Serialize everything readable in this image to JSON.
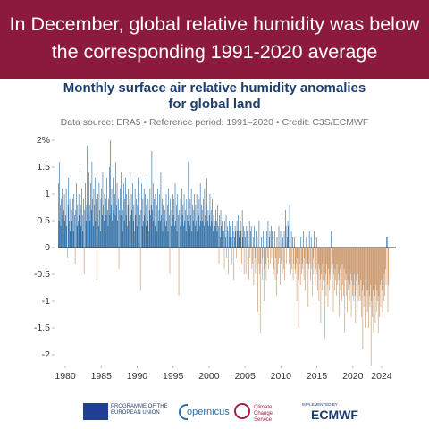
{
  "headline": "In December, global relative humidity was below the corresponding 1991-2020 average",
  "chart_data": {
    "type": "bar",
    "title": "Monthly surface air relative humidity anomalies for global land",
    "subtitle": "Data source: ERA5 • Reference period: 1991–2020 • Credit: C3S/ECMWF",
    "positive_color": "#2e6da4",
    "negative_color": "#c9966a",
    "xlim": [
      1979,
      2025.5
    ],
    "xticks": [
      1980,
      1985,
      1990,
      1995,
      2000,
      2005,
      2010,
      2015,
      2020,
      2024
    ],
    "ylim": [
      -2.2,
      2.1
    ],
    "yticks": [
      {
        "value": 2,
        "label": "2%"
      },
      1.5,
      1,
      0.5,
      0,
      -0.5,
      -1,
      -1.5,
      -2
    ],
    "x": [
      1979.04,
      1979.13,
      1979.21,
      1979.29,
      1979.38,
      1979.46,
      1979.54,
      1979.63,
      1979.71,
      1979.79,
      1979.88,
      1979.96,
      1980.04,
      1980.13,
      1980.21,
      1980.29,
      1980.38,
      1980.46,
      1980.54,
      1980.63,
      1980.71,
      1980.79,
      1980.88,
      1980.96,
      1981.04,
      1981.13,
      1981.21,
      1981.29,
      1981.38,
      1981.46,
      1981.54,
      1981.63,
      1981.71,
      1981.79,
      1981.88,
      1981.96,
      1982.04,
      1982.13,
      1982.21,
      1982.29,
      1982.38,
      1982.46,
      1982.54,
      1982.63,
      1982.71,
      1982.79,
      1982.88,
      1982.96,
      1983.04,
      1983.13,
      1983.21,
      1983.29,
      1983.38,
      1983.46,
      1983.54,
      1983.63,
      1983.71,
      1983.79,
      1983.88,
      1983.96,
      1984.04,
      1984.13,
      1984.21,
      1984.29,
      1984.38,
      1984.46,
      1984.54,
      1984.63,
      1984.71,
      1984.79,
      1984.88,
      1984.96,
      1985.04,
      1985.13,
      1985.21,
      1985.29,
      1985.38,
      1985.46,
      1985.54,
      1985.63,
      1985.71,
      1985.79,
      1985.88,
      1985.96,
      1986.04,
      1986.13,
      1986.21,
      1986.29,
      1986.38,
      1986.46,
      1986.54,
      1986.63,
      1986.71,
      1986.79,
      1986.88,
      1986.96,
      1987.04,
      1987.13,
      1987.21,
      1987.29,
      1987.38,
      1987.46,
      1987.54,
      1987.63,
      1987.71,
      1987.79,
      1987.88,
      1987.96,
      1988.04,
      1988.13,
      1988.21,
      1988.29,
      1988.38,
      1988.46,
      1988.54,
      1988.63,
      1988.71,
      1988.79,
      1988.88,
      1988.96,
      1989.04,
      1989.13,
      1989.21,
      1989.29,
      1989.38,
      1989.46,
      1989.54,
      1989.63,
      1989.71,
      1989.79,
      1989.88,
      1989.96,
      1990.04,
      1990.13,
      1990.21,
      1990.29,
      1990.38,
      1990.46,
      1990.54,
      1990.63,
      1990.71,
      1990.79,
      1990.88,
      1990.96,
      1991.04,
      1991.13,
      1991.21,
      1991.29,
      1991.38,
      1991.46,
      1991.54,
      1991.63,
      1991.71,
      1991.79,
      1991.88,
      1991.96,
      1992.04,
      1992.13,
      1992.21,
      1992.29,
      1992.38,
      1992.46,
      1992.54,
      1992.63,
      1992.71,
      1992.79,
      1992.88,
      1992.96,
      1993.04,
      1993.13,
      1993.21,
      1993.29,
      1993.38,
      1993.46,
      1993.54,
      1993.63,
      1993.71,
      1993.79,
      1993.88,
      1993.96,
      1994.04,
      1994.13,
      1994.21,
      1994.29,
      1994.38,
      1994.46,
      1994.54,
      1994.63,
      1994.71,
      1994.79,
      1994.88,
      1994.96,
      1995.04,
      1995.13,
      1995.21,
      1995.29,
      1995.38,
      1995.46,
      1995.54,
      1995.63,
      1995.71,
      1995.79,
      1995.88,
      1995.96,
      1996.04,
      1996.13,
      1996.21,
      1996.29,
      1996.38,
      1996.46,
      1996.54,
      1996.63,
      1996.71,
      1996.79,
      1996.88,
      1996.96,
      1997.04,
      1997.13,
      1997.21,
      1997.29,
      1997.38,
      1997.46,
      1997.54,
      1997.63,
      1997.71,
      1997.79,
      1997.88,
      1997.96,
      1998.04,
      1998.13,
      1998.21,
      1998.29,
      1998.38,
      1998.46,
      1998.54,
      1998.63,
      1998.71,
      1998.79,
      1998.88,
      1998.96,
      1999.04,
      1999.13,
      1999.21,
      1999.29,
      1999.38,
      1999.46,
      1999.54,
      1999.63,
      1999.71,
      1999.79,
      1999.88,
      1999.96,
      2000.04,
      2000.13,
      2000.21,
      2000.29,
      2000.38,
      2000.46,
      2000.54,
      2000.63,
      2000.71,
      2000.79,
      2000.88,
      2000.96,
      2001.04,
      2001.13,
      2001.21,
      2001.29,
      2001.38,
      2001.46,
      2001.54,
      2001.63,
      2001.71,
      2001.79,
      2001.88,
      2001.96,
      2002.04,
      2002.13,
      2002.21,
      2002.29,
      2002.38,
      2002.46,
      2002.54,
      2002.63,
      2002.71,
      2002.79,
      2002.88,
      2002.96,
      2003.04,
      2003.13,
      2003.21,
      2003.29,
      2003.38,
      2003.46,
      2003.54,
      2003.63,
      2003.71,
      2003.79,
      2003.88,
      2003.96,
      2004.04,
      2004.13,
      2004.21,
      2004.29,
      2004.38,
      2004.46,
      2004.54,
      2004.63,
      2004.71,
      2004.79,
      2004.88,
      2004.96,
      2005.04,
      2005.13,
      2005.21,
      2005.29,
      2005.38,
      2005.46,
      2005.54,
      2005.63,
      2005.71,
      2005.79,
      2005.88,
      2005.96,
      2006.04,
      2006.13,
      2006.21,
      2006.29,
      2006.38,
      2006.46,
      2006.54,
      2006.63,
      2006.71,
      2006.79,
      2006.88,
      2006.96,
      2007.04,
      2007.13,
      2007.21,
      2007.29,
      2007.38,
      2007.46,
      2007.54,
      2007.63,
      2007.71,
      2007.79,
      2007.88,
      2007.96,
      2008.04,
      2008.13,
      2008.21,
      2008.29,
      2008.38,
      2008.46,
      2008.54,
      2008.63,
      2008.71,
      2008.79,
      2008.88,
      2008.96,
      2009.04,
      2009.13,
      2009.21,
      2009.29,
      2009.38,
      2009.46,
      2009.54,
      2009.63,
      2009.71,
      2009.79,
      2009.88,
      2009.96,
      2010.04,
      2010.13,
      2010.21,
      2010.29,
      2010.38,
      2010.46,
      2010.54,
      2010.63,
      2010.71,
      2010.79,
      2010.88,
      2010.96,
      2011.04,
      2011.13,
      2011.21,
      2011.29,
      2011.38,
      2011.46,
      2011.54,
      2011.63,
      2011.71,
      2011.79,
      2011.88,
      2011.96,
      2012.04,
      2012.13,
      2012.21,
      2012.29,
      2012.38,
      2012.46,
      2012.54,
      2012.63,
      2012.71,
      2012.79,
      2012.88,
      2012.96,
      2013.04,
      2013.13,
      2013.21,
      2013.29,
      2013.38,
      2013.46,
      2013.54,
      2013.63,
      2013.71,
      2013.79,
      2013.88,
      2013.96,
      2014.04,
      2014.13,
      2014.21,
      2014.29,
      2014.38,
      2014.46,
      2014.54,
      2014.63,
      2014.71,
      2014.79,
      2014.88,
      2014.96,
      2015.04,
      2015.13,
      2015.21,
      2015.29,
      2015.38,
      2015.46,
      2015.54,
      2015.63,
      2015.71,
      2015.79,
      2015.88,
      2015.96,
      2016.04,
      2016.13,
      2016.21,
      2016.29,
      2016.38,
      2016.46,
      2016.54,
      2016.63,
      2016.71,
      2016.79,
      2016.88,
      2016.96,
      2017.04,
      2017.13,
      2017.21,
      2017.29,
      2017.38,
      2017.46,
      2017.54,
      2017.63,
      2017.71,
      2017.79,
      2017.88,
      2017.96,
      2018.04,
      2018.13,
      2018.21,
      2018.29,
      2018.38,
      2018.46,
      2018.54,
      2018.63,
      2018.71,
      2018.79,
      2018.88,
      2018.96,
      2019.04,
      2019.13,
      2019.21,
      2019.29,
      2019.38,
      2019.46,
      2019.54,
      2019.63,
      2019.71,
      2019.79,
      2019.88,
      2019.96,
      2020.04,
      2020.13,
      2020.21,
      2020.29,
      2020.38,
      2020.46,
      2020.54,
      2020.63,
      2020.71,
      2020.79,
      2020.88,
      2020.96,
      2021.04,
      2021.13,
      2021.21,
      2021.29,
      2021.38,
      2021.46,
      2021.54,
      2021.63,
      2021.71,
      2021.79,
      2021.88,
      2021.96,
      2022.04,
      2022.13,
      2022.21,
      2022.29,
      2022.38,
      2022.46,
      2022.54,
      2022.63,
      2022.71,
      2022.79,
      2022.88,
      2022.96,
      2023.04,
      2023.13,
      2023.21,
      2023.29,
      2023.38,
      2023.46,
      2023.54,
      2023.63,
      2023.71,
      2023.79,
      2023.88,
      2023.96,
      2024.04,
      2024.13,
      2024.21,
      2024.29,
      2024.38,
      2024.46,
      2024.54,
      2024.63,
      2024.71,
      2024.79,
      2024.88,
      2024.96
    ],
    "values": [
      1.2,
      0.5,
      1.6,
      0.8,
      0.4,
      0.9,
      1.1,
      0.6,
      0.3,
      0.7,
      1.0,
      0.5,
      0.6,
      1.1,
      0.4,
      -0.2,
      0.8,
      1.3,
      0.5,
      0.9,
      0.3,
      1.4,
      0.7,
      0.5,
      0.9,
      0.3,
      1.0,
      0.6,
      -0.3,
      0.7,
      1.2,
      0.4,
      0.8,
      0.5,
      1.0,
      0.6,
      1.5,
      0.8,
      0.4,
      1.1,
      0.6,
      0.3,
      0.9,
      -0.5,
      0.7,
      1.2,
      0.5,
      0.8,
      1.9,
      1.0,
      0.6,
      1.4,
      0.8,
      0.5,
      1.2,
      0.7,
      1.6,
      0.9,
      0.4,
      1.1,
      0.8,
      1.3,
      0.5,
      0.9,
      -0.6,
      0.6,
      1.0,
      0.4,
      1.2,
      0.7,
      0.3,
      0.9,
      1.1,
      0.6,
      1.4,
      0.8,
      0.5,
      1.0,
      0.3,
      0.9,
      0.6,
      1.3,
      0.7,
      0.4,
      0.9,
      1.5,
      0.6,
      2.0,
      0.8,
      1.1,
      0.5,
      1.3,
      0.7,
      0.4,
      1.0,
      0.6,
      1.6,
      0.8,
      1.2,
      0.5,
      0.9,
      -0.4,
      0.7,
      1.1,
      0.6,
      1.4,
      0.8,
      0.3,
      0.7,
      1.2,
      0.5,
      0.9,
      1.3,
      0.6,
      1.0,
      0.4,
      0.8,
      1.1,
      0.5,
      0.9,
      1.4,
      0.6,
      1.0,
      0.7,
      1.2,
      0.5,
      0.8,
      0.3,
      1.1,
      0.6,
      0.9,
      0.4,
      0.8,
      1.3,
      0.5,
      1.0,
      0.6,
      -0.8,
      0.7,
      1.2,
      0.4,
      0.9,
      0.5,
      1.1,
      0.6,
      1.0,
      0.4,
      0.8,
      1.3,
      0.5,
      0.9,
      0.3,
      0.7,
      1.1,
      0.6,
      0.8,
      1.8,
      0.7,
      1.2,
      0.5,
      0.9,
      0.4,
      1.0,
      0.6,
      0.8,
      0.3,
      1.1,
      0.5,
      0.7,
      1.0,
      0.5,
      1.4,
      0.6,
      0.9,
      0.3,
      0.8,
      1.2,
      0.5,
      0.7,
      0.4,
      1.0,
      0.5,
      0.8,
      0.3,
      1.1,
      0.6,
      -0.5,
      0.9,
      0.4,
      0.7,
      0.5,
      1.0,
      0.6,
      0.9,
      0.4,
      1.2,
      0.5,
      0.8,
      0.3,
      1.0,
      0.6,
      -0.9,
      0.7,
      0.4,
      0.9,
      0.5,
      1.1,
      0.6,
      0.8,
      0.4,
      1.0,
      0.5,
      0.7,
      0.3,
      0.9,
      0.6,
      0.5,
      1.6,
      0.7,
      0.4,
      0.9,
      0.6,
      1.1,
      0.3,
      0.8,
      0.5,
      0.7,
      1.0,
      0.4,
      0.8,
      0.5,
      1.0,
      0.3,
      0.7,
      0.6,
      0.9,
      0.4,
      1.2,
      0.5,
      0.8,
      0.7,
      0.5,
      0.9,
      0.4,
      1.1,
      0.6,
      0.3,
      0.8,
      1.3,
      0.5,
      0.7,
      0.4,
      0.6,
      1.0,
      0.4,
      0.7,
      0.5,
      0.9,
      0.3,
      0.6,
      0.8,
      0.4,
      0.5,
      0.7,
      0.5,
      0.3,
      0.8,
      0.4,
      -0.3,
      0.6,
      0.2,
      0.7,
      0.4,
      0.5,
      0.3,
      0.6,
      0.3,
      -0.4,
      0.5,
      0.2,
      0.6,
      -0.2,
      0.4,
      0.3,
      -0.5,
      0.5,
      0.2,
      0.4,
      0.4,
      0.2,
      -0.3,
      0.5,
      0.3,
      -0.6,
      0.2,
      0.4,
      0.3,
      -0.2,
      0.5,
      0.3,
      0.6,
      0.3,
      0.2,
      -0.4,
      0.5,
      0.3,
      -0.3,
      0.7,
      0.2,
      0.4,
      -0.5,
      0.3,
      0.2,
      -0.5,
      0.4,
      0.3,
      -0.3,
      0.2,
      -0.6,
      0.5,
      -0.2,
      0.3,
      0.4,
      -0.4,
      -0.3,
      0.2,
      -0.7,
      0.4,
      -0.2,
      -0.5,
      0.3,
      -0.4,
      0.2,
      -1.2,
      -0.3,
      0.5,
      -0.5,
      -1.6,
      -0.3,
      0.2,
      -0.6,
      -0.2,
      0.3,
      -1.0,
      -0.4,
      0.2,
      -0.3,
      -0.6,
      0.3,
      -0.2,
      0.5,
      -0.4,
      0.2,
      0.3,
      -0.3,
      0.4,
      -0.2,
      0.3,
      0.2,
      -0.5,
      -0.4,
      0.3,
      -0.6,
      -0.2,
      -0.9,
      0.2,
      -0.5,
      -0.3,
      0.4,
      -0.2,
      -0.7,
      0.3,
      -0.3,
      0.5,
      -0.5,
      0.2,
      -0.4,
      0.3,
      -0.6,
      0.7,
      0.4,
      -0.3,
      0.2,
      0.5,
      0.4,
      -0.3,
      0.8,
      -0.2,
      -0.5,
      0.3,
      -0.4,
      0.2,
      -0.6,
      -0.3,
      0.2,
      -0.4,
      -0.5,
      -0.3,
      -1.0,
      -0.2,
      -0.6,
      -1.5,
      -0.4,
      -0.3,
      -0.7,
      0.2,
      -0.5,
      -0.3,
      -0.4,
      0.3,
      -0.6,
      -0.2,
      -0.8,
      -0.3,
      0.2,
      -0.5,
      -0.3,
      -1.1,
      -0.4,
      0.3,
      -0.3,
      -0.6,
      0.2,
      -0.4,
      -0.9,
      -0.2,
      -0.5,
      0.3,
      -0.3,
      -0.7,
      -0.4,
      0.2,
      -0.5,
      -0.8,
      -0.3,
      -1.0,
      -0.4,
      -0.6,
      -1.4,
      -0.5,
      -0.8,
      -0.3,
      -0.6,
      -0.4,
      -0.6,
      -1.7,
      -0.5,
      -0.9,
      -0.3,
      -0.7,
      -1.1,
      -0.4,
      -0.8,
      -0.5,
      -0.6,
      0.3,
      -0.4,
      -0.7,
      -0.3,
      -1.2,
      -0.5,
      -0.8,
      -0.4,
      -0.6,
      -0.9,
      -0.3,
      -0.7,
      -0.5,
      -0.6,
      -1.3,
      -0.4,
      -0.8,
      -0.5,
      -1.0,
      -0.3,
      -0.7,
      -0.9,
      -0.4,
      -1.6,
      -0.6,
      -0.5,
      -0.9,
      -1.2,
      -0.6,
      -0.8,
      -0.4,
      -1.0,
      -0.7,
      -0.5,
      -1.3,
      -0.6,
      -0.9,
      -0.7,
      -1.0,
      -0.5,
      -0.9,
      -1.4,
      -0.6,
      -0.8,
      -1.2,
      -0.5,
      -1.0,
      -0.7,
      -0.9,
      -1.0,
      -0.6,
      -1.3,
      -0.8,
      -1.9,
      -0.7,
      -1.1,
      -0.9,
      -1.5,
      -0.6,
      -1.2,
      -0.8,
      -1.2,
      -0.8,
      -1.5,
      -0.9,
      -1.1,
      -0.7,
      -2.2,
      -1.0,
      -1.3,
      -0.8,
      -1.6,
      -0.9,
      -0.9,
      -1.4,
      -0.7,
      -1.2,
      -0.8,
      -1.0,
      -1.6,
      -0.9,
      -1.3,
      -0.7,
      -1.1,
      -0.6,
      -0.8,
      -1.2,
      -0.6,
      -1.0,
      -0.5,
      -0.9,
      -0.4,
      -0.7,
      0.2,
      0.2,
      -1.2,
      -0.7
    ]
  },
  "logos": {
    "eu": "PROGRAMME OF THE EUROPEAN UNION",
    "copernicus": "opernicus",
    "c3s": "Climate Change Service",
    "implemented": "IMPLEMENTED BY",
    "ecmwf": "ECMWF"
  }
}
